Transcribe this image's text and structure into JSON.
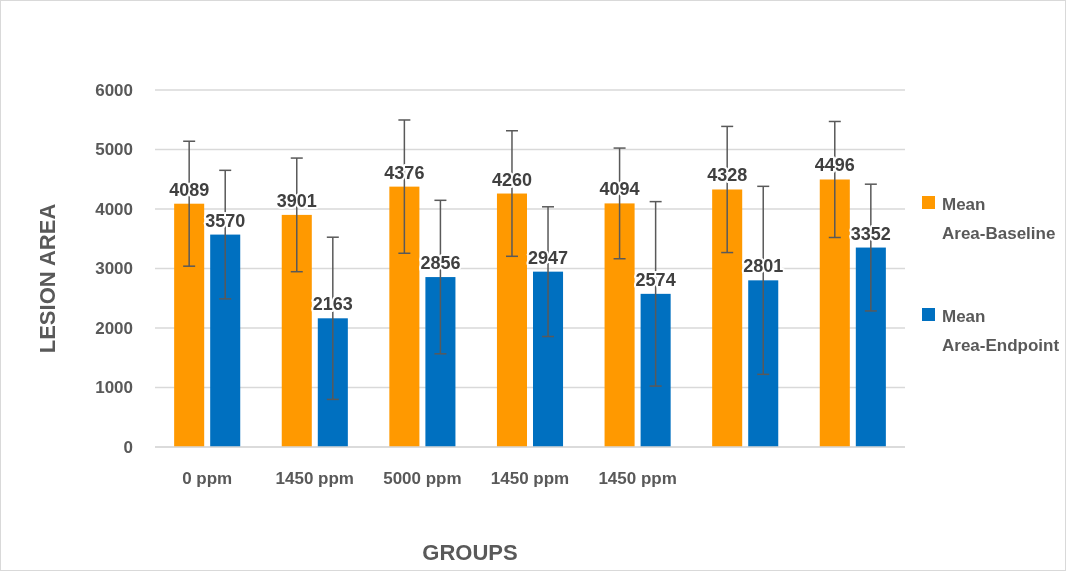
{
  "chart_data": {
    "type": "bar",
    "xlabel": "GROUPS",
    "ylabel": "LESION AREA",
    "categories": [
      "0 ppm",
      "1450 ppm",
      "5000 ppm",
      "1450 ppm",
      "1450 ppm",
      null,
      null
    ],
    "series": [
      {
        "name": "Mean Area-Baseline",
        "color": "#ff9900",
        "values": [
          4089,
          3901,
          4376,
          4260,
          4094,
          4328,
          4496
        ],
        "errors": [
          1050,
          955,
          1120,
          1055,
          930,
          1060,
          975
        ]
      },
      {
        "name": "Mean Area-Endpoint",
        "color": "#0070c0",
        "values": [
          3570,
          2163,
          2856,
          2947,
          2574,
          2801,
          3352
        ],
        "errors": [
          1080,
          1363,
          1290,
          1090,
          1550,
          1580,
          1065
        ]
      }
    ],
    "ylim": [
      0,
      6000
    ],
    "yticks": [
      0,
      1000,
      2000,
      3000,
      4000,
      5000,
      6000
    ],
    "grid": "y",
    "legend": "right",
    "data_labels": true
  }
}
